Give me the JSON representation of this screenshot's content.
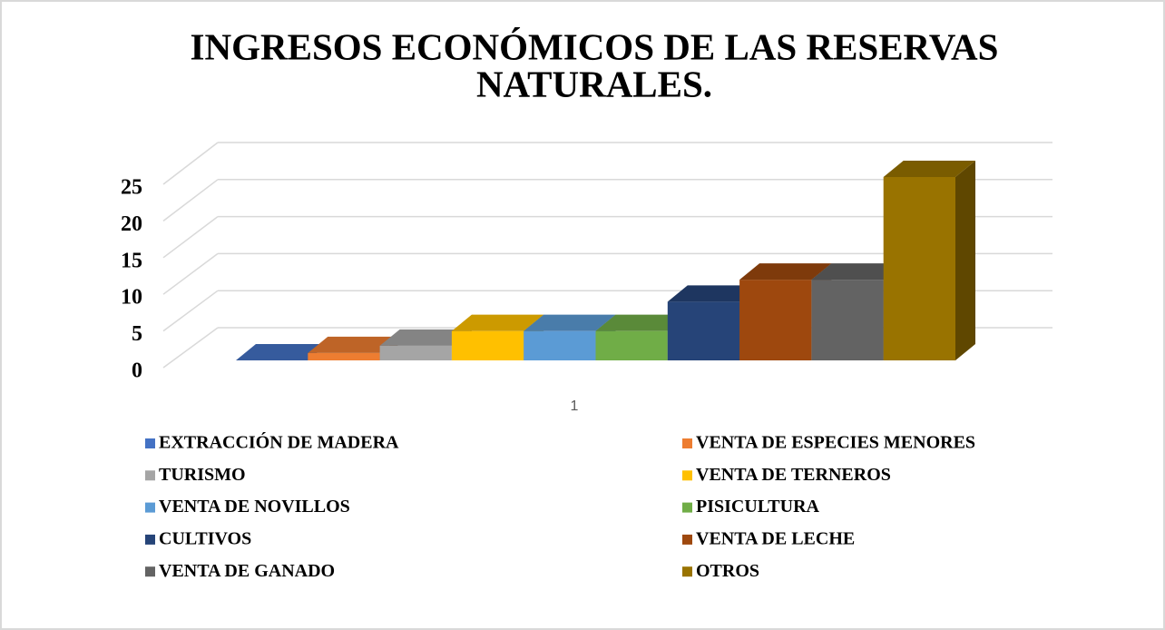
{
  "chart_data": {
    "type": "bar3d",
    "title": [
      "INGRESOS ECONÓMICOS DE LAS RESERVAS",
      "NATURALES."
    ],
    "categories": [
      "1"
    ],
    "series": [
      {
        "name": "EXTRACCIÓN DE MADERA",
        "color": "#4472c4",
        "values": [
          0
        ]
      },
      {
        "name": "VENTA DE ESPECIES MENORES",
        "color": "#ed7d31",
        "values": [
          1
        ]
      },
      {
        "name": "TURISMO",
        "color": "#a5a5a5",
        "values": [
          2
        ]
      },
      {
        "name": "VENTA DE TERNEROS",
        "color": "#ffc000",
        "values": [
          4
        ]
      },
      {
        "name": "VENTA DE NOVILLOS",
        "color": "#5b9bd5",
        "values": [
          4
        ]
      },
      {
        "name": "PISICULTURA",
        "color": "#70ad47",
        "values": [
          4
        ]
      },
      {
        "name": "CULTIVOS",
        "color": "#264478",
        "values": [
          8
        ]
      },
      {
        "name": "VENTA DE LECHE",
        "color": "#9e480e",
        "values": [
          11
        ]
      },
      {
        "name": "VENTA DE GANADO",
        "color": "#636363",
        "values": [
          11
        ]
      },
      {
        "name": "OTROS",
        "color": "#997300",
        "values": [
          25
        ]
      }
    ],
    "ylim": [
      0,
      25
    ],
    "yticks": [
      0,
      5,
      10,
      15,
      20,
      25
    ],
    "grid": true
  }
}
